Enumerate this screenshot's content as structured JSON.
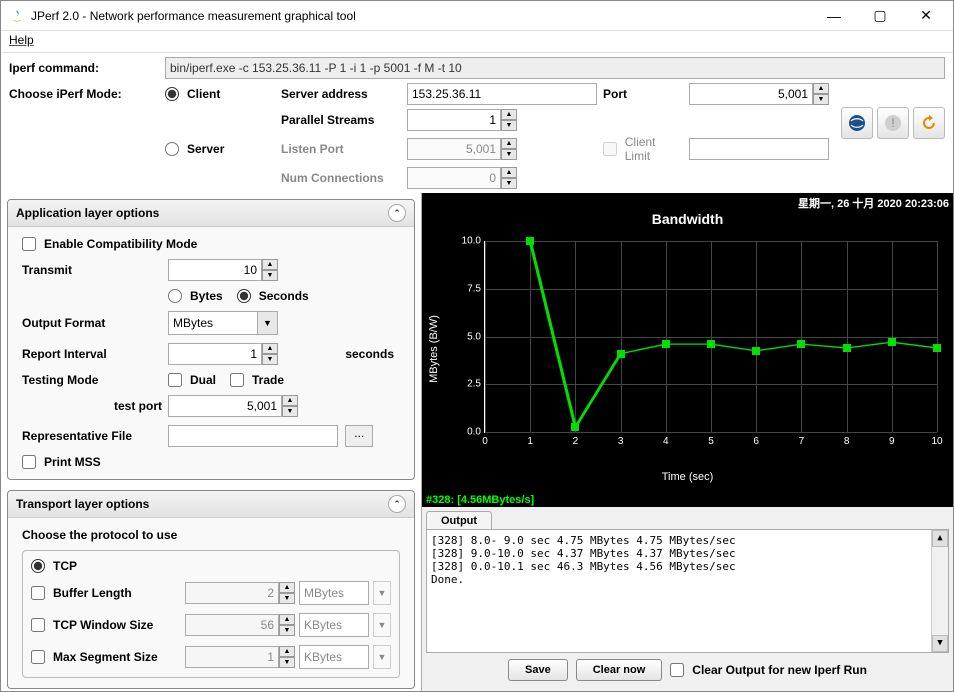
{
  "window": {
    "title": "JPerf 2.0 - Network performance measurement graphical tool"
  },
  "menu": {
    "help": "Help"
  },
  "top": {
    "iperf_cmd_label": "Iperf command:",
    "iperf_cmd_value": "bin/iperf.exe -c 153.25.36.11 -P 1 -i 1 -p 5001 -f M -t 10",
    "choose_mode_label": "Choose iPerf Mode:",
    "client_label": "Client",
    "server_label": "Server",
    "server_addr_label": "Server address",
    "server_addr_value": "153.25.36.11",
    "port_label": "Port",
    "port_value": "5,001",
    "parallel_label": "Parallel Streams",
    "parallel_value": "1",
    "listen_port_label": "Listen Port",
    "listen_port_value": "5,001",
    "client_limit_label": "Client Limit",
    "num_conn_label": "Num Connections",
    "num_conn_value": "0"
  },
  "app_layer": {
    "title": "Application layer options",
    "compat_label": "Enable Compatibility Mode",
    "transmit_label": "Transmit",
    "transmit_value": "10",
    "bytes_label": "Bytes",
    "seconds_label": "Seconds",
    "output_fmt_label": "Output Format",
    "output_fmt_value": "MBytes",
    "report_int_label": "Report Interval",
    "report_int_value": "1",
    "report_int_unit": "seconds",
    "testing_mode_label": "Testing Mode",
    "dual_label": "Dual",
    "trade_label": "Trade",
    "test_port_label": "test port",
    "test_port_value": "5,001",
    "rep_file_label": "Representative File",
    "print_mss_label": "Print MSS"
  },
  "transport": {
    "title": "Transport layer options",
    "choose_proto": "Choose the protocol to use",
    "tcp_label": "TCP",
    "buf_len_label": "Buffer Length",
    "buf_len_value": "2",
    "buf_len_unit": "MBytes",
    "win_size_label": "TCP Window Size",
    "win_size_value": "56",
    "win_size_unit": "KBytes",
    "mss_label": "Max Segment Size",
    "mss_value": "1",
    "mss_unit": "KBytes"
  },
  "chart": {
    "timestamp": "星期一, 26 十月 2020 20:23:06",
    "title": "Bandwidth",
    "xlabel": "Time (sec)",
    "ylabel": "MBytes (B/W)",
    "xlim": [
      0,
      10
    ],
    "ylim": [
      0,
      10
    ],
    "yticks": [
      "0.0",
      "2.5",
      "5.0",
      "7.5",
      "10.0"
    ],
    "xticks": [
      "0",
      "1",
      "2",
      "3",
      "4",
      "5",
      "6",
      "7",
      "8",
      "9",
      "10"
    ],
    "line_color": "#00e000",
    "grid_color": "#444444",
    "bg": "#000000",
    "points": [
      {
        "x": 1,
        "y": 10.3
      },
      {
        "x": 2,
        "y": 0.25
      },
      {
        "x": 3,
        "y": 4.1
      },
      {
        "x": 4,
        "y": 4.6
      },
      {
        "x": 5,
        "y": 4.6
      },
      {
        "x": 6,
        "y": 4.25
      },
      {
        "x": 7,
        "y": 4.6
      },
      {
        "x": 8,
        "y": 4.4
      },
      {
        "x": 9,
        "y": 4.7
      },
      {
        "x": 10,
        "y": 4.4
      }
    ],
    "status": "#328: [4.56MBytes/s]"
  },
  "output": {
    "tab": "Output",
    "lines": [
      "[328]  8.0- 9.0 sec  4.75 MBytes  4.75 MBytes/sec",
      "[328]  9.0-10.0 sec  4.37 MBytes  4.37 MBytes/sec",
      "[328]  0.0-10.1 sec  46.3 MBytes  4.56 MBytes/sec",
      "Done."
    ],
    "save": "Save",
    "clear": "Clear now",
    "clear_on_run": "Clear Output for new Iperf Run"
  }
}
